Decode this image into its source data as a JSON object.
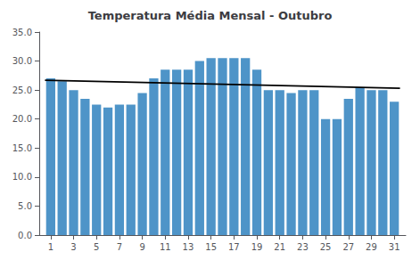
{
  "chart_data": {
    "type": "bar",
    "title": "Temperatura Média Mensal - Outubro",
    "x": [
      1,
      2,
      3,
      4,
      5,
      6,
      7,
      8,
      9,
      10,
      11,
      12,
      13,
      14,
      15,
      16,
      17,
      18,
      19,
      20,
      21,
      22,
      23,
      24,
      25,
      26,
      27,
      28,
      29,
      30,
      31
    ],
    "series": [
      {
        "type": "bar",
        "color": "#4e94c8",
        "values": [
          27.0,
          26.5,
          25.0,
          23.5,
          22.5,
          22.0,
          22.5,
          22.5,
          24.5,
          27.0,
          28.5,
          28.5,
          28.5,
          30.0,
          30.5,
          30.5,
          30.5,
          30.5,
          28.5,
          25.0,
          25.0,
          24.5,
          25.0,
          25.0,
          20.0,
          20.0,
          23.5,
          25.5,
          25.0,
          25.0,
          23.0
        ]
      },
      {
        "type": "line",
        "color": "#000000",
        "x": [
          0.5,
          31.5
        ],
        "values": [
          26.7,
          25.3
        ]
      }
    ],
    "xlim": [
      0.0,
      32.0
    ],
    "xticks": [
      1,
      3,
      5,
      7,
      9,
      11,
      13,
      15,
      17,
      19,
      21,
      23,
      25,
      27,
      29,
      31
    ],
    "ylim": [
      0.0,
      35.0
    ],
    "yticks": [
      {
        "value": 0,
        "label": "0.0"
      },
      {
        "value": 5,
        "label": "5.0"
      },
      {
        "value": 10,
        "label": "10.0"
      },
      {
        "value": 15,
        "label": "15.0"
      },
      {
        "value": 20,
        "label": "20.0"
      },
      {
        "value": 25,
        "label": "25.0"
      },
      {
        "value": 30,
        "label": "30.0"
      },
      {
        "value": 35,
        "label": "35.0"
      }
    ],
    "grid": false
  }
}
